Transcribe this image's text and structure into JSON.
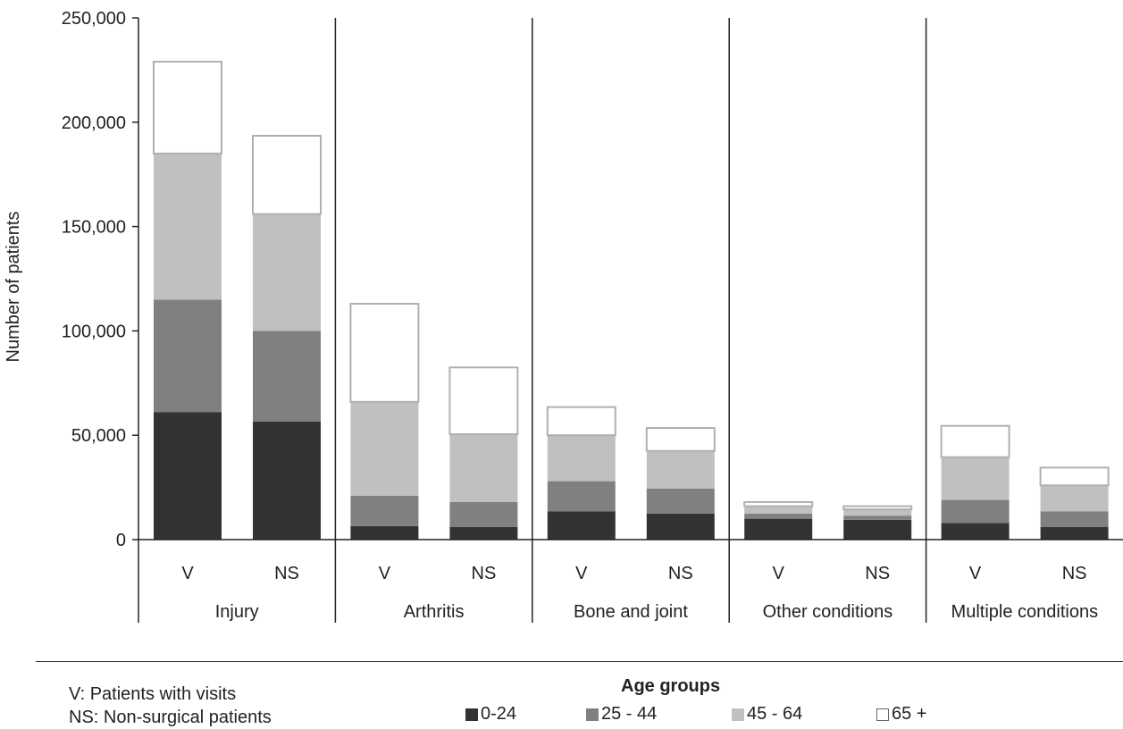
{
  "chart_data": {
    "type": "bar",
    "stacked": true,
    "ylabel": "Number of patients",
    "ylim": [
      0,
      250000
    ],
    "yticks": [
      0,
      50000,
      100000,
      150000,
      200000,
      250000
    ],
    "ytick_labels": [
      "0",
      "50,000",
      "100,000",
      "150,000",
      "200,000",
      "250,000"
    ],
    "grid": false,
    "groups": [
      {
        "label": "Injury",
        "bars": [
          {
            "label": "V",
            "values": [
              61000,
              54000,
              70000,
              44000
            ]
          },
          {
            "label": "NS",
            "values": [
              56500,
              43500,
              56000,
              37500
            ]
          }
        ]
      },
      {
        "label": "Arthritis",
        "bars": [
          {
            "label": "V",
            "values": [
              6500,
              14500,
              45000,
              47000
            ]
          },
          {
            "label": "NS",
            "values": [
              6000,
              12000,
              32500,
              32000
            ]
          }
        ]
      },
      {
        "label": "Bone and joint",
        "bars": [
          {
            "label": "V",
            "values": [
              13500,
              14500,
              22000,
              13500
            ]
          },
          {
            "label": "NS",
            "values": [
              12500,
              12000,
              18000,
              11000
            ]
          }
        ]
      },
      {
        "label": "Other conditions",
        "bars": [
          {
            "label": "V",
            "values": [
              10000,
              2500,
              3500,
              2000
            ]
          },
          {
            "label": "NS",
            "values": [
              9500,
              2000,
              3000,
              1500
            ]
          }
        ]
      },
      {
        "label": "Multiple conditions",
        "bars": [
          {
            "label": "V",
            "values": [
              8000,
              11000,
              20500,
              15000
            ]
          },
          {
            "label": "NS",
            "values": [
              6000,
              7500,
              12500,
              8500
            ]
          }
        ]
      }
    ],
    "series": [
      {
        "name": "0-24",
        "color": "#333333"
      },
      {
        "name": "25 - 44",
        "color": "#808080"
      },
      {
        "name": "45 - 64",
        "color": "#c0c0c0"
      },
      {
        "name": "65 +",
        "color": "#ffffff"
      }
    ],
    "legend": {
      "title": "Age groups",
      "placement": "bottom"
    }
  },
  "notes": {
    "v": "V:  Patients with visits",
    "ns": "NS: Non-surgical patients"
  }
}
